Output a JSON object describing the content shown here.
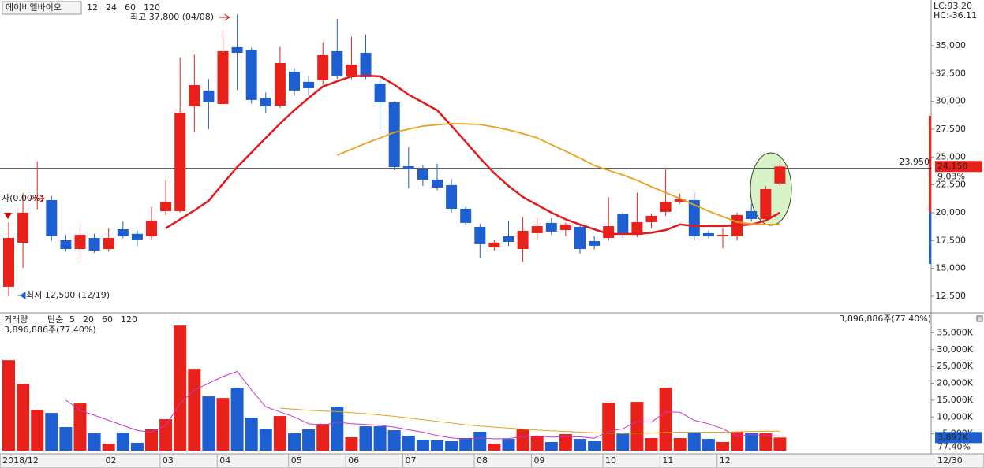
{
  "chart_data": {
    "type": "candlestick",
    "title": "에이비엘바이오",
    "ma_series": [
      {
        "name": "12",
        "color": "#e3191c",
        "values": [
          null,
          null,
          null,
          null,
          null,
          null,
          null,
          null,
          null,
          null,
          null,
          18600,
          19400,
          20200,
          21060,
          22600,
          24100,
          25400,
          26720,
          28000,
          29200,
          30300,
          31320,
          31800,
          32240,
          32300,
          32240,
          31500,
          30600,
          29900,
          29200,
          27800,
          26370,
          24900,
          23540,
          22400,
          21410,
          20700,
          20000,
          19400,
          18940,
          18500,
          18090,
          18090,
          18090,
          18200,
          18440,
          18940,
          18800,
          18800,
          18800,
          18850,
          18940,
          19290,
          20000
        ]
      },
      {
        "name": "24",
        "color": "#e8a21c",
        "values": [
          null,
          null,
          null,
          null,
          null,
          null,
          null,
          null,
          null,
          null,
          null,
          null,
          null,
          null,
          null,
          null,
          null,
          null,
          null,
          null,
          null,
          null,
          null,
          25160,
          25700,
          26230,
          26700,
          27210,
          27500,
          27780,
          27900,
          28000,
          27970,
          27920,
          27700,
          27430,
          27100,
          26720,
          26100,
          25520,
          24900,
          24240,
          23800,
          23390,
          22900,
          22330,
          21800,
          21270,
          20700,
          20140,
          19650,
          19150,
          19000,
          18940,
          18940
        ]
      },
      {
        "name": "60",
        "color": "#3a9a2a"
      },
      {
        "name": "120",
        "color": "#8c8c8c"
      }
    ],
    "open": [
      13350,
      17300,
      21200,
      21130,
      17520,
      16740,
      17730,
      16740,
      18510,
      18100,
      17880,
      20140,
      20140,
      29550,
      30970,
      29760,
      34860,
      34580,
      30260,
      29620,
      32660,
      31750,
      31890,
      34500,
      32310,
      34360,
      31600,
      29910,
      24170,
      23890,
      22970,
      22480,
      20350,
      18720,
      16880,
      17880,
      16740,
      18160,
      19080,
      18440,
      18720,
      17450,
      17730,
      19860,
      18010,
      19150,
      20070,
      20990,
      21130,
      18160,
      17880,
      17880,
      20140,
      19430,
      22620
    ],
    "high": [
      19150,
      21770,
      24600,
      21500,
      18000,
      18900,
      18100,
      18600,
      19200,
      18400,
      20500,
      22900,
      33940,
      34200,
      32000,
      36300,
      37800,
      34800,
      30800,
      34900,
      33000,
      32300,
      35300,
      37400,
      35800,
      36000,
      32200,
      30000,
      25900,
      24300,
      24400,
      23000,
      20500,
      19000,
      17600,
      19300,
      19600,
      19500,
      19500,
      19100,
      19000,
      17900,
      21400,
      20100,
      21800,
      19900,
      23900,
      21700,
      21800,
      18400,
      18600,
      20000,
      20800,
      22400,
      24460
    ],
    "low": [
      12500,
      15050,
      20300,
      17500,
      16500,
      15800,
      16400,
      16500,
      17700,
      17000,
      17600,
      19800,
      20000,
      27200,
      27500,
      29500,
      31000,
      29800,
      28900,
      29400,
      30500,
      30500,
      31500,
      32000,
      32000,
      32000,
      27500,
      23800,
      22200,
      22400,
      22000,
      20000,
      18900,
      15900,
      16600,
      17000,
      15600,
      17600,
      18000,
      17900,
      16300,
      16700,
      17500,
      17700,
      17800,
      18600,
      19700,
      20800,
      17500,
      17700,
      16800,
      17500,
      19200,
      19200,
      22400
    ],
    "close": [
      17730,
      20000,
      21300,
      17880,
      16740,
      18010,
      16600,
      17730,
      17880,
      17590,
      19290,
      20990,
      28980,
      31460,
      29910,
      34500,
      34360,
      30120,
      29550,
      33440,
      30970,
      31180,
      34150,
      32310,
      33300,
      32170,
      29910,
      24100,
      23890,
      22970,
      22260,
      20350,
      19080,
      17170,
      17310,
      17380,
      18370,
      18790,
      18300,
      18940,
      16740,
      17030,
      18790,
      18010,
      19150,
      19720,
      20990,
      21200,
      17880,
      17880,
      18010,
      19790,
      19430,
      22120,
      24150
    ],
    "up_color": "#e8221b",
    "down_color": "#1d5fd0",
    "ylim": [
      11150,
      39100
    ],
    "yticks": [
      {
        "value": 12500,
        "label": "12,500"
      },
      {
        "value": 15000,
        "label": "15,000"
      },
      {
        "value": 17500,
        "label": "17,500"
      },
      {
        "value": 20000,
        "label": "20,000"
      },
      {
        "value": 22500,
        "label": "22,500"
      },
      {
        "value": 25000,
        "label": "25,000"
      },
      {
        "value": 27500,
        "label": "27,500"
      },
      {
        "value": 30000,
        "label": "30,000"
      },
      {
        "value": 32500,
        "label": "32,500"
      },
      {
        "value": 35000,
        "label": "35,000"
      }
    ],
    "hline": {
      "value": 23950,
      "label": "23,950"
    },
    "current": {
      "value": 24150,
      "label": "24,150",
      "change": "9.03%"
    },
    "high_note": "최고 37,800 (04/08)",
    "low_note": "최저 12,500 (12/19)",
    "ref_note": "자(0.00%)",
    "lc": "LC:93.20",
    "hc": "HC:-36.11",
    "xticks": [
      {
        "value": -0.6,
        "label": "2018/12"
      },
      {
        "value": 6.6,
        "label": "02"
      },
      {
        "value": 10.6,
        "label": "03"
      },
      {
        "value": 14.6,
        "label": "04"
      },
      {
        "value": 19.6,
        "label": "05"
      },
      {
        "value": 23.6,
        "label": "06"
      },
      {
        "value": 27.6,
        "label": "07"
      },
      {
        "value": 32.6,
        "label": "08"
      },
      {
        "value": 36.6,
        "label": "09"
      },
      {
        "value": 41.6,
        "label": "10"
      },
      {
        "value": 45.6,
        "label": "11"
      },
      {
        "value": 49.6,
        "label": "12"
      }
    ],
    "last_date": "12/30",
    "volume": {
      "title": "거래량",
      "ma_kind": "단순",
      "info": "3,896,886주(77.40%)",
      "current_label": "3,897K",
      "ratio_label": "77.40%",
      "values": [
        26870,
        19860,
        12150,
        11210,
        7010,
        14020,
        5140,
        2100,
        5370,
        2340,
        6310,
        9350,
        37150,
        24300,
        16120,
        15650,
        18690,
        9810,
        6540,
        10280,
        5140,
        6310,
        7940,
        13080,
        3970,
        7240,
        7240,
        6070,
        4440,
        3270,
        3040,
        2800,
        3740,
        5610,
        2100,
        3500,
        6310,
        4440,
        2570,
        4910,
        3500,
        2800,
        14250,
        5370,
        14490,
        3740,
        18690,
        3740,
        5610,
        3500,
        2570,
        5610,
        5140,
        5140,
        3897
      ],
      "ma_series": [
        {
          "name": "5",
          "color": "#c837c8",
          "values": [
            null,
            null,
            null,
            null,
            15000,
            12000,
            10500,
            9000,
            7500,
            6000,
            5500,
            7500,
            14000,
            18000,
            20000,
            22000,
            23500,
            18000,
            13000,
            11500,
            10000,
            8000,
            7500,
            8500,
            8000,
            7800,
            7500,
            7000,
            6200,
            5500,
            4500,
            3800,
            3400,
            3800,
            3500,
            3600,
            4200,
            4400,
            4000,
            4200,
            4100,
            3700,
            5700,
            6500,
            8700,
            8500,
            11500,
            11400,
            9000,
            8000,
            6500,
            4300,
            4800,
            4500,
            4300
          ]
        },
        {
          "name": "20",
          "color": "#e8a21c",
          "values": [
            null,
            null,
            null,
            null,
            null,
            null,
            null,
            null,
            null,
            null,
            null,
            null,
            null,
            null,
            null,
            null,
            null,
            null,
            null,
            12600,
            12300,
            12000,
            11800,
            11600,
            11300,
            11000,
            10600,
            10200,
            9700,
            9200,
            8700,
            8200,
            7700,
            7300,
            7000,
            6700,
            6400,
            6100,
            5900,
            5700,
            5500,
            5300,
            5200,
            5100,
            5200,
            5200,
            5400,
            5500,
            5500,
            5500,
            5500,
            5600,
            5700,
            5800,
            5800
          ]
        },
        {
          "name": "60",
          "color": "#3a9a2a"
        },
        {
          "name": "120",
          "color": "#8c8c8c"
        }
      ],
      "ylim": [
        0,
        40000
      ],
      "yticks": [
        {
          "value": 5000,
          "label": "5,000K"
        },
        {
          "value": 10000,
          "label": "10,000K"
        },
        {
          "value": 15000,
          "label": "15,000K"
        },
        {
          "value": 20000,
          "label": "20,000K"
        },
        {
          "value": 25000,
          "label": "25,000K"
        },
        {
          "value": 30000,
          "label": "30,000K"
        },
        {
          "value": 35000,
          "label": "35,000K"
        }
      ]
    }
  }
}
